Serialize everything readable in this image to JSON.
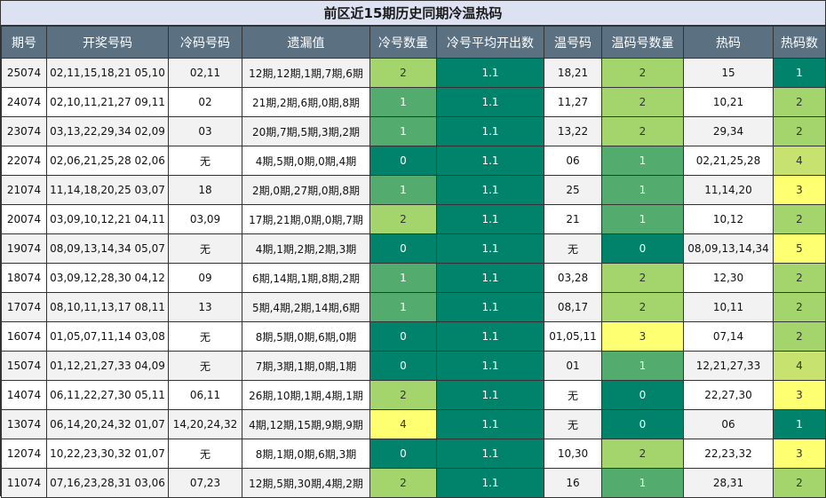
{
  "title": "前区近15期历史同期冷温热码",
  "headers": [
    "期号",
    "开奖号码",
    "冷码号码",
    "遗漏值",
    "冷号数量",
    "冷号平均开出数",
    "温号码",
    "温码号数量",
    "热码",
    "热码数"
  ],
  "palette": {
    "0": "#00836a",
    "1": "#53ab6d",
    "2": "#a4d46c",
    "3": "#ffff72",
    "4": "#ffff72",
    "5": "#ffff72"
  },
  "palette_notes": {
    "hot_4": "#c7e26e",
    "hot_5": "#ffff72"
  },
  "rows": [
    {
      "period": "25074",
      "draw": "02,11,15,18,21 05,10",
      "cold": "02,11",
      "miss": "12期,12期,1期,7期,6期",
      "cold_count": "2",
      "avg": "1.1",
      "warm": "18,21",
      "warm_count": "2",
      "hot": "15",
      "hot_count": "1"
    },
    {
      "period": "24074",
      "draw": "02,10,11,21,27 09,11",
      "cold": "02",
      "miss": "21期,2期,6期,0期,8期",
      "cold_count": "1",
      "avg": "1.1",
      "warm": "11,27",
      "warm_count": "2",
      "hot": "10,21",
      "hot_count": "2"
    },
    {
      "period": "23074",
      "draw": "03,13,22,29,34 02,09",
      "cold": "03",
      "miss": "20期,7期,5期,3期,2期",
      "cold_count": "1",
      "avg": "1.1",
      "warm": "13,22",
      "warm_count": "2",
      "hot": "29,34",
      "hot_count": "2"
    },
    {
      "period": "22074",
      "draw": "02,06,21,25,28 02,06",
      "cold": "无",
      "miss": "4期,5期,0期,0期,4期",
      "cold_count": "0",
      "avg": "1.1",
      "warm": "06",
      "warm_count": "1",
      "hot": "02,21,25,28",
      "hot_count": "4"
    },
    {
      "period": "21074",
      "draw": "11,14,18,20,25 03,07",
      "cold": "18",
      "miss": "2期,0期,27期,0期,8期",
      "cold_count": "1",
      "avg": "1.1",
      "warm": "25",
      "warm_count": "1",
      "hot": "11,14,20",
      "hot_count": "3"
    },
    {
      "period": "20074",
      "draw": "03,09,10,12,21 04,11",
      "cold": "03,09",
      "miss": "17期,21期,0期,0期,7期",
      "cold_count": "2",
      "avg": "1.1",
      "warm": "21",
      "warm_count": "1",
      "hot": "10,12",
      "hot_count": "2"
    },
    {
      "period": "19074",
      "draw": "08,09,13,14,34 05,07",
      "cold": "无",
      "miss": "4期,1期,2期,2期,3期",
      "cold_count": "0",
      "avg": "1.1",
      "warm": "无",
      "warm_count": "0",
      "hot": "08,09,13,14,34",
      "hot_count": "5"
    },
    {
      "period": "18074",
      "draw": "03,09,12,28,30 04,12",
      "cold": "09",
      "miss": "6期,14期,1期,8期,2期",
      "cold_count": "1",
      "avg": "1.1",
      "warm": "03,28",
      "warm_count": "2",
      "hot": "12,30",
      "hot_count": "2"
    },
    {
      "period": "17074",
      "draw": "08,10,11,13,17 08,11",
      "cold": "13",
      "miss": "5期,4期,2期,14期,6期",
      "cold_count": "1",
      "avg": "1.1",
      "warm": "08,17",
      "warm_count": "2",
      "hot": "10,11",
      "hot_count": "2"
    },
    {
      "period": "16074",
      "draw": "01,05,07,11,14 03,08",
      "cold": "无",
      "miss": "8期,5期,0期,6期,0期",
      "cold_count": "0",
      "avg": "1.1",
      "warm": "01,05,11",
      "warm_count": "3",
      "hot": "07,14",
      "hot_count": "2"
    },
    {
      "period": "15074",
      "draw": "01,12,21,27,33 04,09",
      "cold": "无",
      "miss": "7期,3期,1期,0期,1期",
      "cold_count": "0",
      "avg": "1.1",
      "warm": "01",
      "warm_count": "1",
      "hot": "12,21,27,33",
      "hot_count": "4"
    },
    {
      "period": "14074",
      "draw": "06,11,22,27,30 05,11",
      "cold": "06,11",
      "miss": "26期,10期,1期,4期,1期",
      "cold_count": "2",
      "avg": "1.1",
      "warm": "无",
      "warm_count": "0",
      "hot": "22,27,30",
      "hot_count": "3"
    },
    {
      "period": "13074",
      "draw": "06,14,20,24,32 01,07",
      "cold": "14,20,24,32",
      "miss": "4期,12期,15期,9期,9期",
      "cold_count": "4",
      "avg": "1.1",
      "warm": "无",
      "warm_count": "0",
      "hot": "06",
      "hot_count": "1"
    },
    {
      "period": "12074",
      "draw": "10,22,23,30,32 01,07",
      "cold": "无",
      "miss": "8期,1期,0期,6期,3期",
      "cold_count": "0",
      "avg": "1.1",
      "warm": "10,30",
      "warm_count": "2",
      "hot": "22,23,32",
      "hot_count": "3"
    },
    {
      "period": "11074",
      "draw": "07,16,23,28,31 03,06",
      "cold": "07,23",
      "miss": "12期,5期,30期,4期,2期",
      "cold_count": "2",
      "avg": "1.1",
      "warm": "16",
      "warm_count": "1",
      "hot": "28,31",
      "hot_count": "2"
    }
  ]
}
